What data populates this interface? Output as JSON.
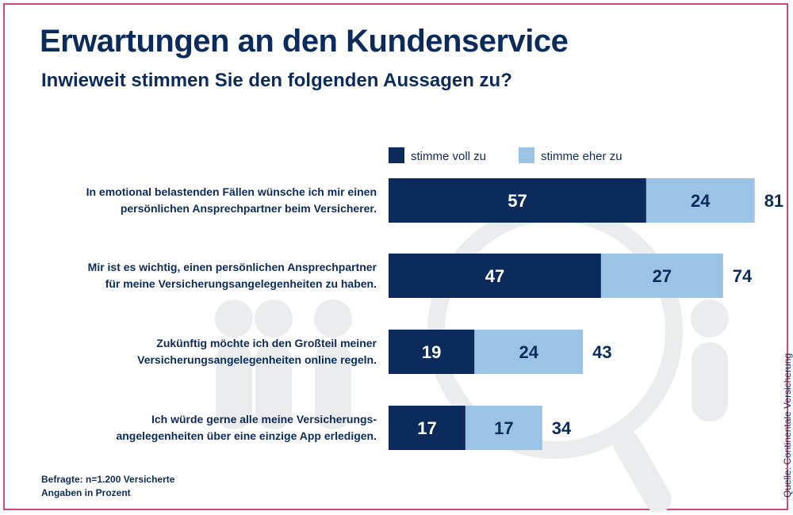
{
  "header": {
    "title": "Erwartungen an den Kundenservice",
    "subtitle": "Inwieweit stimmen Sie den folgenden Aussagen zu?"
  },
  "footer": {
    "note_1": "Befragte: n=1.200 Versicherte",
    "note_2": "Angaben in Prozent",
    "source": "Quelle: Continentale Versicherung"
  },
  "colors": {
    "dark": "#0b2b5c",
    "light": "#9bc3e6",
    "text": "#0b2b5c",
    "frame": "#c84a7c",
    "watermark": "#ebecee"
  },
  "chart_data": {
    "type": "bar",
    "orientation": "horizontal",
    "stacked": true,
    "categories": [
      [
        "In emotional belastenden Fällen wünsche ich mir einen",
        "persönlichen Ansprechpartner beim Versicherer."
      ],
      [
        "Mir ist es wichtig, einen persönlichen Ansprechpartner",
        "für meine Versicherungsangelegenheiten zu haben."
      ],
      [
        "Zukünftig möchte ich den Großteil meiner",
        "Versicherungsangelegenheiten online regeln."
      ],
      [
        "Ich würde gerne alle meine Versicherungs-",
        "angelegenheiten über eine einzige App erledigen."
      ]
    ],
    "series": [
      {
        "name": "stimme voll zu",
        "values": [
          57,
          47,
          19,
          17
        ]
      },
      {
        "name": "stimme eher zu",
        "values": [
          24,
          27,
          24,
          17
        ]
      }
    ],
    "totals": [
      81,
      74,
      43,
      34
    ],
    "xlim": [
      0,
      100
    ],
    "legend": "top",
    "grid": false
  }
}
